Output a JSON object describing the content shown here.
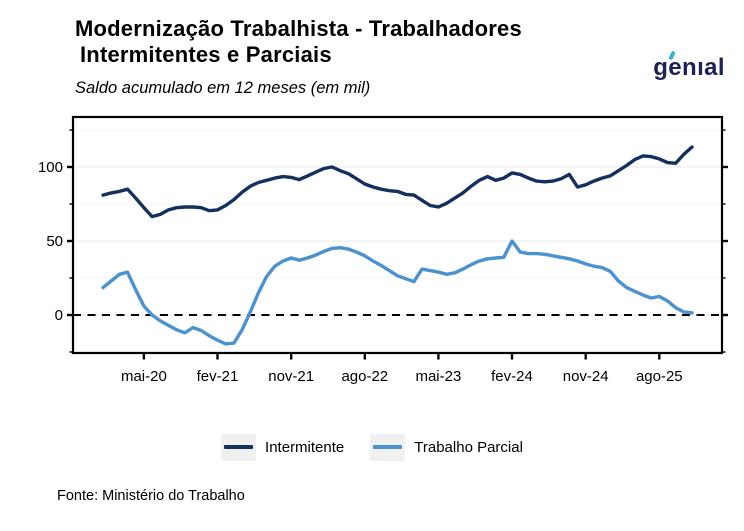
{
  "header": {
    "title_line1": "Modernização Trabalhista - Trabalhadores",
    "title_line2": "Intermitentes e Parciais",
    "subtitle": "Saldo acumulado em 12 meses (em mil)",
    "logo_text": "genıal"
  },
  "legend": {
    "items": [
      {
        "label": "Intermitente"
      },
      {
        "label": "Trabalho Parcial"
      }
    ]
  },
  "footer": {
    "source": "Fonte: Ministério do Trabalho"
  },
  "colors": {
    "intermitente_line": "#14305f",
    "trabalho_parcial_line": "#4b92d0",
    "logo_navy": "#1e2156",
    "logo_teal": "#35b6c8",
    "plot_border": "#000000",
    "zero_dash": "#000000",
    "grid_major": "#e9e9e9",
    "grid_minor": "#f4f4f4",
    "legend_key_bg": "#f0f0f0"
  },
  "chart_data": {
    "type": "line",
    "title": "Modernização Trabalhista - Trabalhadores Intermitentes e Parciais",
    "subtitle": "Saldo acumulado em 12 meses (em mil)",
    "unit": "mil",
    "grid": "horizontal-only",
    "legend_position": "bottom",
    "zero_line_dashed": true,
    "months": [
      "dez-19",
      "jan-20",
      "fev-20",
      "mar-20",
      "abr-20",
      "mai-20",
      "jun-20",
      "jul-20",
      "ago-20",
      "set-20",
      "out-20",
      "nov-20",
      "dez-20",
      "jan-21",
      "fev-21",
      "mar-21",
      "abr-21",
      "mai-21",
      "jun-21",
      "jul-21",
      "ago-21",
      "set-21",
      "out-21",
      "nov-21",
      "dez-21",
      "jan-22",
      "fev-22",
      "mar-22",
      "abr-22",
      "mai-22",
      "jun-22",
      "jul-22",
      "ago-22",
      "set-22",
      "out-22",
      "nov-22",
      "dez-22",
      "jan-23",
      "fev-23",
      "mar-23",
      "abr-23",
      "mai-23",
      "jun-23",
      "jul-23",
      "ago-23",
      "set-23",
      "out-23",
      "nov-23",
      "dez-23",
      "jan-24",
      "fev-24",
      "mar-24",
      "abr-24",
      "mai-24",
      "jun-24",
      "jul-24",
      "ago-24",
      "set-24",
      "out-24",
      "nov-24",
      "dez-24",
      "jan-25",
      "fev-25",
      "mar-25",
      "abr-25",
      "mai-25",
      "jun-25",
      "jul-25",
      "ago-25",
      "set-25",
      "out-25",
      "nov-25",
      "dez-25"
    ],
    "series": [
      {
        "name": "Intermitente",
        "color": "#14305f",
        "values": [
          81,
          82.5,
          83.5,
          85,
          79,
          72.5,
          66.5,
          68,
          71,
          72.5,
          73,
          73,
          72.5,
          70.5,
          71,
          74,
          78,
          83,
          87,
          89.5,
          91,
          92.5,
          93.5,
          93,
          91.5,
          94,
          96.5,
          99,
          100,
          97.5,
          95.5,
          92,
          88.5,
          86.5,
          85,
          84,
          83.5,
          81.5,
          81,
          77.5,
          74,
          73,
          75.5,
          79,
          82.5,
          87,
          91,
          93.5,
          91,
          92.5,
          96,
          95,
          92.5,
          90.5,
          90,
          90.5,
          92,
          95,
          86.5,
          88,
          90.5,
          92.5,
          94,
          97.5,
          101,
          105,
          107.5,
          107,
          105.5,
          103,
          102.5,
          108.5,
          113.5
        ]
      },
      {
        "name": "Trabalho Parcial",
        "color": "#4b92d0",
        "values": [
          18.5,
          23,
          27.5,
          29,
          17,
          6,
          0,
          -4,
          -7,
          -10,
          -12,
          -8.5,
          -10.5,
          -14,
          -17,
          -19.5,
          -19,
          -10,
          2,
          15,
          26,
          33,
          36.5,
          38.5,
          37,
          38.5,
          40.5,
          43,
          45,
          45.5,
          44.5,
          42.5,
          40,
          36.5,
          33.5,
          30,
          26.5,
          24.5,
          22.5,
          31,
          30,
          29,
          27.5,
          28.5,
          31,
          34,
          36.5,
          38,
          38.5,
          39,
          50,
          42.5,
          41.5,
          41.5,
          41,
          40,
          39,
          38,
          36.5,
          34.5,
          33,
          32,
          29.5,
          23,
          18.5,
          16,
          13.5,
          11.5,
          12.5,
          9.5,
          5,
          2,
          1.5
        ]
      }
    ],
    "x_ticks": [
      {
        "label": "mai-20",
        "index": 5
      },
      {
        "label": "fev-21",
        "index": 14
      },
      {
        "label": "nov-21",
        "index": 23
      },
      {
        "label": "ago-22",
        "index": 32
      },
      {
        "label": "mai-23",
        "index": 41
      },
      {
        "label": "fev-24",
        "index": 50
      },
      {
        "label": "nov-24",
        "index": 59
      },
      {
        "label": "ago-25",
        "index": 68
      }
    ],
    "y_axis": {
      "major_ticks": [
        0,
        50,
        100
      ],
      "minor_ticks": [
        -25,
        25,
        75,
        125
      ],
      "range": [
        -32,
        134
      ]
    }
  }
}
